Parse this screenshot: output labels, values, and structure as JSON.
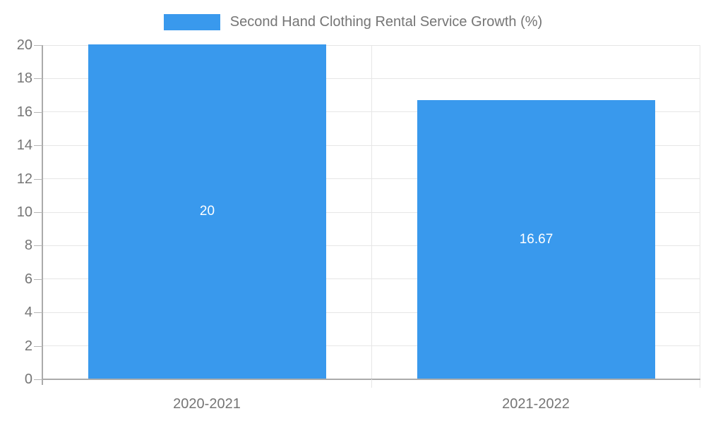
{
  "chart_data": {
    "type": "bar",
    "title": "Second Hand Clothing Rental Service Growth (%)",
    "categories": [
      "2020-2021",
      "2021-2022"
    ],
    "values": [
      20,
      16.67
    ],
    "value_labels": [
      "20",
      "16.67"
    ],
    "ylabel": "",
    "xlabel": "",
    "ylim": [
      0,
      20
    ],
    "ytick_step": 2,
    "ytick_labels": [
      "0",
      "2",
      "4",
      "6",
      "8",
      "10",
      "12",
      "14",
      "16",
      "18",
      "20"
    ],
    "grid": true,
    "legend_position": "top-center",
    "bar_color": "#3999ED",
    "bar_value_label_color": "#ffffff"
  },
  "colors": {
    "background": "#ffffff",
    "gridline": "#e6e6e6",
    "axis": "#ababab",
    "tick": "#b5b5b5",
    "text": "#757575"
  }
}
